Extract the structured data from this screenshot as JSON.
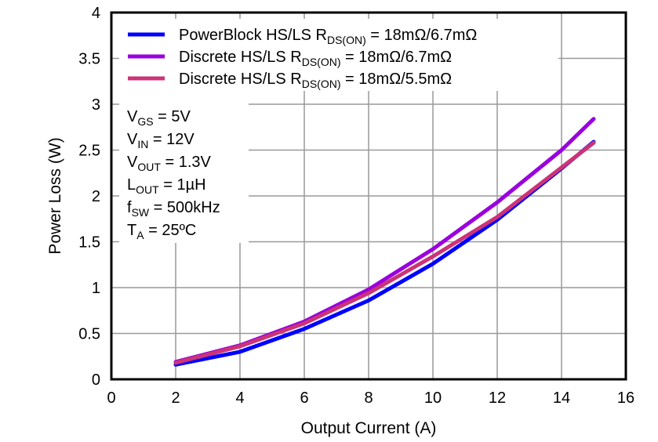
{
  "chart_data": {
    "type": "line",
    "xlabel": "Output Current (A)",
    "ylabel": "Power Loss (W)",
    "xlim": [
      0,
      16
    ],
    "ylim": [
      0,
      4
    ],
    "xticks": [
      "0",
      "2",
      "4",
      "6",
      "8",
      "10",
      "12",
      "14",
      "16"
    ],
    "yticks": [
      "0",
      "0.5",
      "1",
      "1.5",
      "2",
      "2.5",
      "3",
      "3.5",
      "4"
    ],
    "grid": true,
    "legend_position": "top-left",
    "x": [
      2,
      4,
      6,
      8,
      10,
      12,
      14,
      15
    ],
    "series": [
      {
        "name": "PowerBlock  HS/LS R",
        "sub": "DS(ON)",
        "tail": " = 18mΩ/6.7mΩ",
        "color": "#0000ff",
        "values": [
          0.16,
          0.3,
          0.55,
          0.86,
          1.26,
          1.74,
          2.3,
          2.59
        ]
      },
      {
        "name": "Discrete  HS/LS R",
        "sub": "DS(ON)",
        "tail": " = 18mΩ/6.7mΩ",
        "color": "#9900dd",
        "values": [
          0.19,
          0.37,
          0.63,
          0.98,
          1.42,
          1.93,
          2.5,
          2.84
        ]
      },
      {
        "name": "Discrete  HS/LS R",
        "sub": "DS(ON)",
        "tail": " = 18mΩ/5.5mΩ",
        "color": "#cc3377",
        "values": [
          0.18,
          0.36,
          0.61,
          0.94,
          1.34,
          1.77,
          2.31,
          2.58
        ]
      }
    ],
    "annotations": [
      {
        "main": "V",
        "sub": "GS",
        "tail": " = 5V"
      },
      {
        "main": "V",
        "sub": "IN",
        "tail": " = 12V"
      },
      {
        "main": "V",
        "sub": "OUT",
        "tail": " = 1.3V"
      },
      {
        "main": "L",
        "sub": "OUT",
        "tail": " = 1µH"
      },
      {
        "main": "f",
        "sub": "SW",
        "tail": " = 500kHz"
      },
      {
        "main": "T",
        "sub": "A",
        "tail": " = 25ºC"
      }
    ]
  }
}
